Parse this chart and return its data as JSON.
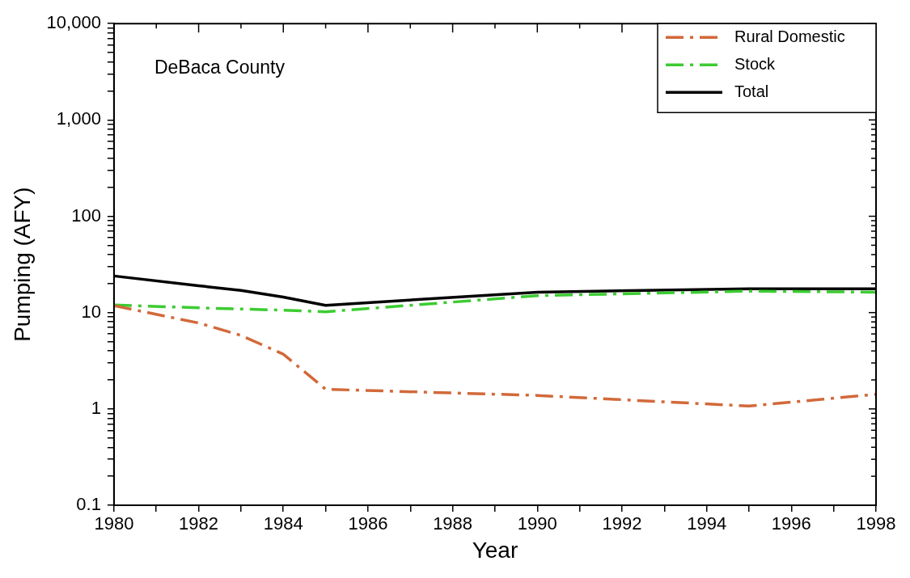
{
  "chart_data": {
    "type": "line",
    "xlabel": "Year",
    "ylabel": "Pumping (AFY)",
    "annotations": [
      "DeBaca County"
    ],
    "x": [
      1980,
      1982,
      1983,
      1984,
      1985,
      1990,
      1995,
      1998
    ],
    "series": [
      {
        "name": "Rural Domestic",
        "color": "#d2693a",
        "line_style": "dashed",
        "values": [
          11.8,
          7.8,
          5.8,
          3.7,
          1.6,
          1.38,
          1.07,
          1.42
        ]
      },
      {
        "name": "Stock",
        "color": "#3ccc32",
        "line_style": "dashed",
        "values": [
          12,
          11.2,
          10.9,
          10.6,
          10.2,
          15,
          16.7,
          16.3
        ]
      },
      {
        "name": "Total",
        "color": "#000000",
        "line_style": "solid",
        "values": [
          24,
          19,
          17,
          14.5,
          11.9,
          16.3,
          17.7,
          17.7
        ]
      }
    ],
    "log": "y",
    "grid": false,
    "legend": "top right",
    "marker": "none",
    "xlim": [
      1980,
      1998
    ],
    "xticks": [
      1980,
      {
        "value": 1981,
        "label": null
      },
      1982,
      {
        "value": 1983,
        "label": null
      },
      1984,
      {
        "value": 1985,
        "label": null
      },
      1986,
      {
        "value": 1987,
        "label": null
      },
      1988,
      {
        "value": 1989,
        "label": null
      },
      1990,
      {
        "value": 1991,
        "label": null
      },
      1992,
      {
        "value": 1993,
        "label": null
      },
      1994,
      {
        "value": 1995,
        "label": null
      },
      1996,
      {
        "value": 1997,
        "label": null
      },
      1998
    ],
    "ylim": [
      0.1,
      10000
    ],
    "yticks": [
      0.1,
      {
        "value": 0.2,
        "label": null
      },
      {
        "value": 0.3,
        "label": null
      },
      {
        "value": 0.4,
        "label": null
      },
      {
        "value": 0.5,
        "label": null
      },
      {
        "value": 0.6,
        "label": null
      },
      {
        "value": 0.7,
        "label": null
      },
      {
        "value": 0.8,
        "label": null
      },
      {
        "value": 0.9,
        "label": null
      },
      1,
      {
        "value": 2,
        "label": null
      },
      {
        "value": 3,
        "label": null
      },
      {
        "value": 4,
        "label": null
      },
      {
        "value": 5,
        "label": null
      },
      {
        "value": 6,
        "label": null
      },
      {
        "value": 7,
        "label": null
      },
      {
        "value": 8,
        "label": null
      },
      {
        "value": 9,
        "label": null
      },
      10,
      {
        "value": 20,
        "label": null
      },
      {
        "value": 30,
        "label": null
      },
      {
        "value": 40,
        "label": null
      },
      {
        "value": 50,
        "label": null
      },
      {
        "value": 60,
        "label": null
      },
      {
        "value": 70,
        "label": null
      },
      {
        "value": 80,
        "label": null
      },
      {
        "value": 90,
        "label": null
      },
      100,
      {
        "value": 200,
        "label": null
      },
      {
        "value": 300,
        "label": null
      },
      {
        "value": 400,
        "label": null
      },
      {
        "value": 500,
        "label": null
      },
      {
        "value": 600,
        "label": null
      },
      {
        "value": 700,
        "label": null
      },
      {
        "value": 800,
        "label": null
      },
      {
        "value": 900,
        "label": null
      },
      {
        "value": 1000,
        "label": "1,000"
      },
      {
        "value": 2000,
        "label": null
      },
      {
        "value": 3000,
        "label": null
      },
      {
        "value": 4000,
        "label": null
      },
      {
        "value": 5000,
        "label": null
      },
      {
        "value": 6000,
        "label": null
      },
      {
        "value": 7000,
        "label": null
      },
      {
        "value": 8000,
        "label": null
      },
      {
        "value": 9000,
        "label": null
      },
      {
        "value": 10000,
        "label": "10,000"
      }
    ]
  }
}
